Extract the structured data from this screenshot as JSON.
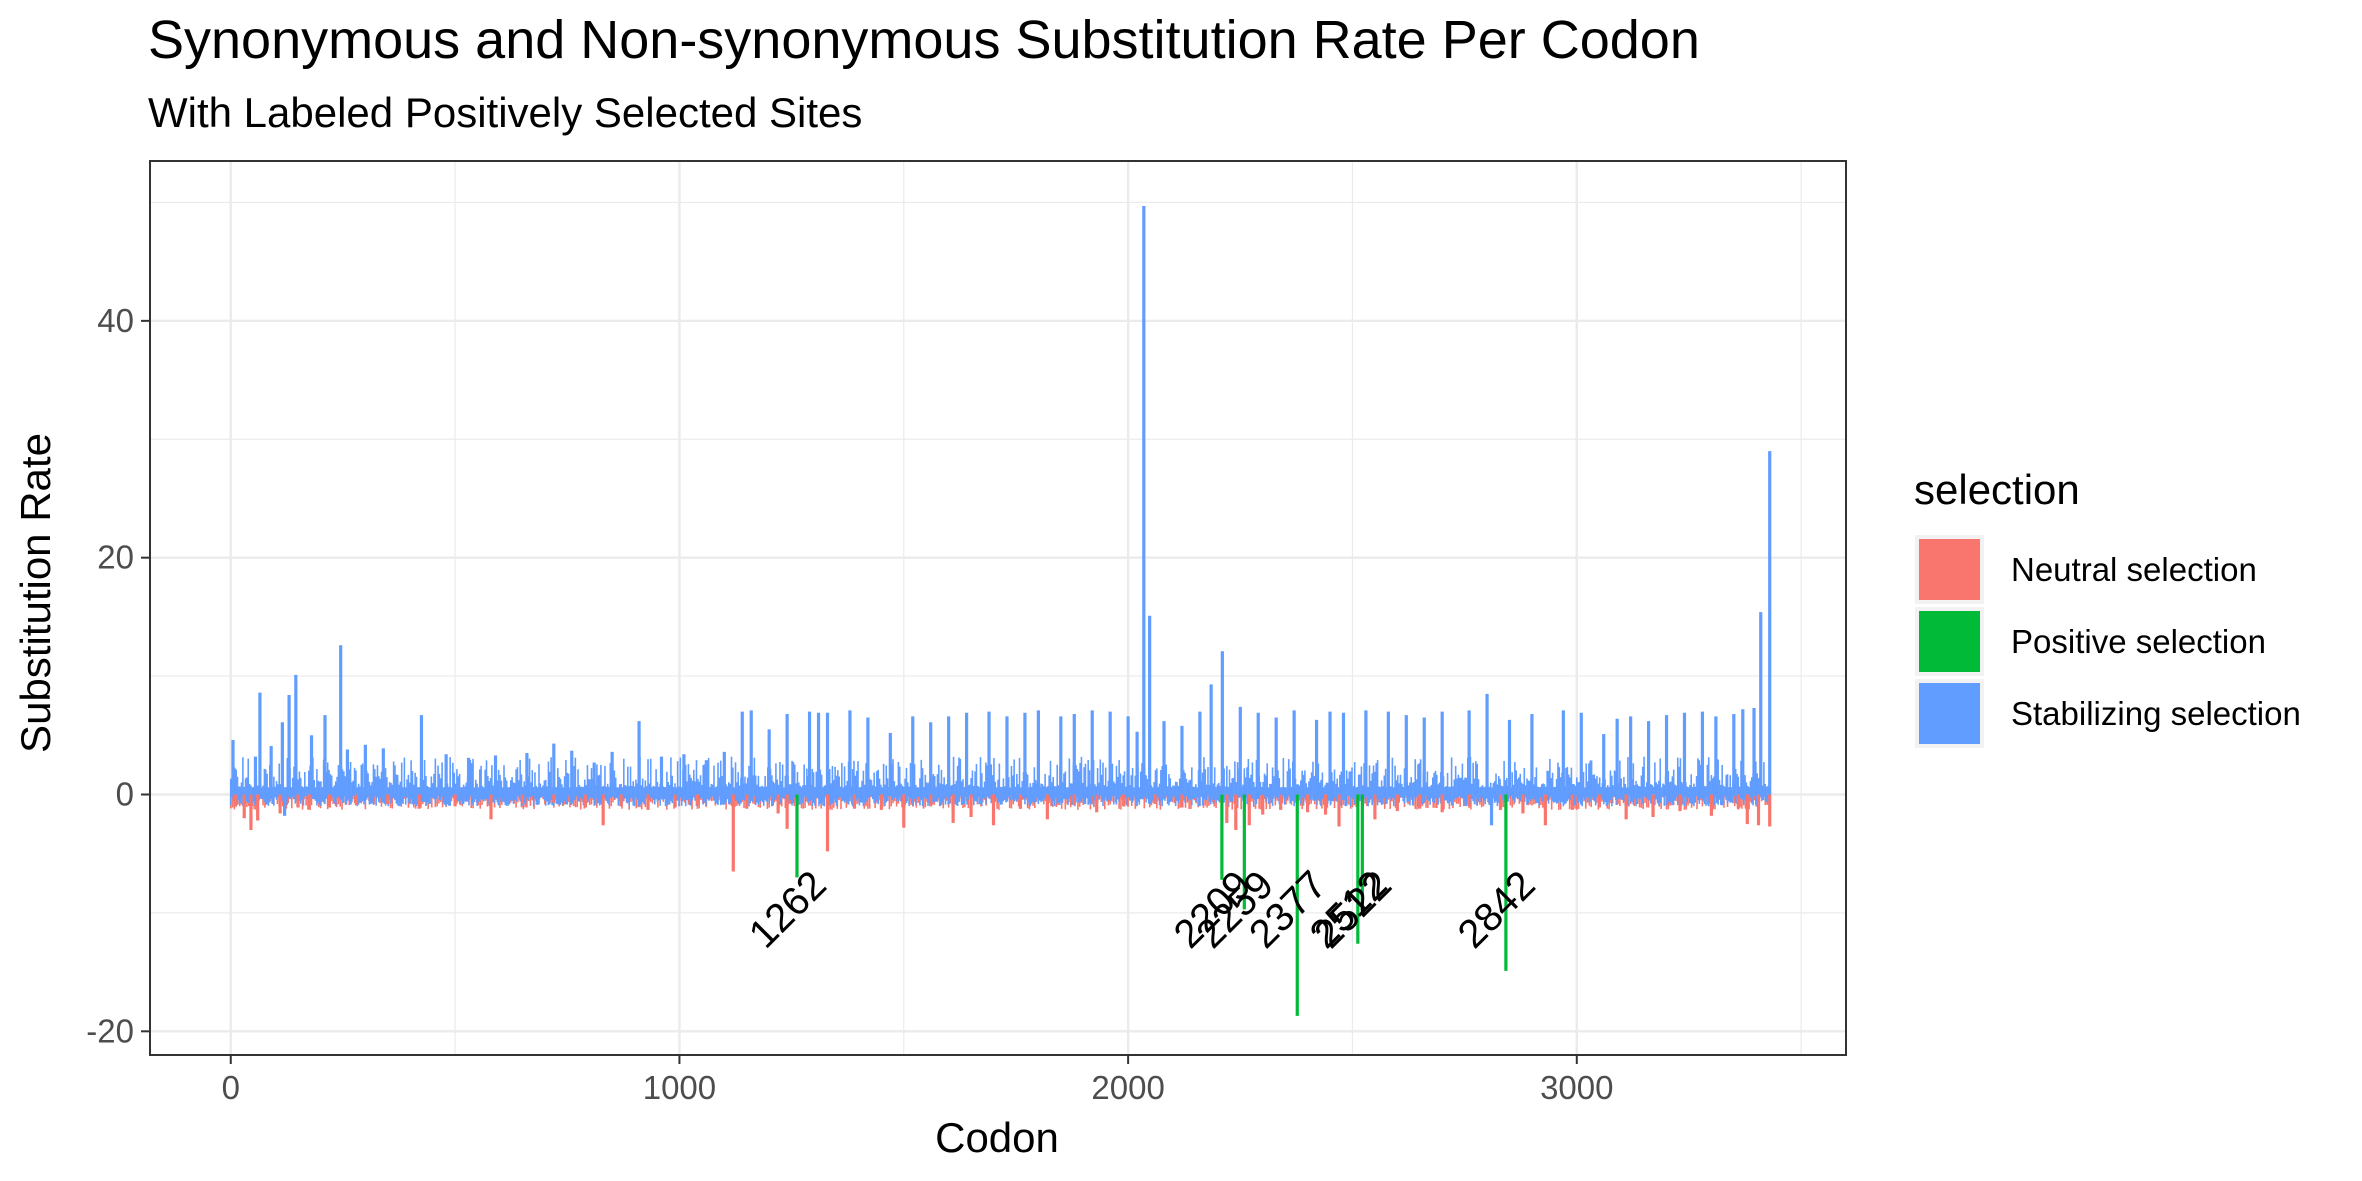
{
  "chart_data": {
    "type": "bar",
    "title": "Synonymous and Non-synonymous Substitution Rate Per Codon",
    "subtitle": "With Labeled Positively Selected Sites",
    "xlabel": "Codon",
    "ylabel": "Substitution Rate",
    "xlim": [
      -180,
      3600
    ],
    "ylim": [
      -22,
      53.5
    ],
    "x_ticks": [
      0,
      1000,
      2000,
      3000
    ],
    "y_ticks": [
      -20,
      0,
      20,
      40
    ],
    "grid": true,
    "legend": {
      "title": "selection",
      "position": "right",
      "items": [
        {
          "label": "Neutral selection",
          "color": "#F8766D"
        },
        {
          "label": "Positive selection",
          "color": "#00BA38"
        },
        {
          "label": "Stabilizing selection",
          "color": "#619CFF"
        }
      ]
    },
    "series": [
      {
        "name": "Stabilizing selection",
        "color": "#619CFF",
        "points": [
          [
            5,
            4.6
          ],
          [
            55,
            3.2
          ],
          [
            65,
            8.6
          ],
          [
            90,
            4.1
          ],
          [
            115,
            6.1
          ],
          [
            120,
            -1.8
          ],
          [
            130,
            8.4
          ],
          [
            145,
            10.1
          ],
          [
            180,
            5.0
          ],
          [
            210,
            6.7
          ],
          [
            245,
            12.6
          ],
          [
            260,
            3.8
          ],
          [
            300,
            4.2
          ],
          [
            340,
            3.9
          ],
          [
            425,
            6.7
          ],
          [
            480,
            3.4
          ],
          [
            530,
            3.1
          ],
          [
            590,
            3.3
          ],
          [
            660,
            3.5
          ],
          [
            720,
            4.3
          ],
          [
            760,
            3.7
          ],
          [
            810,
            2.7
          ],
          [
            850,
            3.6
          ],
          [
            910,
            6.2
          ],
          [
            960,
            3.2
          ],
          [
            1010,
            3.4
          ],
          [
            1060,
            2.9
          ],
          [
            1100,
            3.6
          ],
          [
            1140,
            7.0
          ],
          [
            1160,
            7.1
          ],
          [
            1200,
            5.5
          ],
          [
            1240,
            6.8
          ],
          [
            1290,
            7.0
          ],
          [
            1310,
            6.9
          ],
          [
            1330,
            6.9
          ],
          [
            1380,
            7.1
          ],
          [
            1420,
            6.5
          ],
          [
            1470,
            5.2
          ],
          [
            1520,
            6.6
          ],
          [
            1560,
            6.1
          ],
          [
            1600,
            6.6
          ],
          [
            1640,
            6.9
          ],
          [
            1690,
            7.0
          ],
          [
            1730,
            6.6
          ],
          [
            1770,
            6.9
          ],
          [
            1800,
            7.1
          ],
          [
            1850,
            6.6
          ],
          [
            1880,
            6.8
          ],
          [
            1920,
            7.1
          ],
          [
            1960,
            7.0
          ],
          [
            2000,
            6.6
          ],
          [
            2020,
            5.3
          ],
          [
            2035,
            49.7
          ],
          [
            2048,
            15.1
          ],
          [
            2080,
            6.2
          ],
          [
            2120,
            5.8
          ],
          [
            2160,
            7.0
          ],
          [
            2185,
            9.3
          ],
          [
            2210,
            12.1
          ],
          [
            2250,
            7.4
          ],
          [
            2290,
            6.9
          ],
          [
            2330,
            6.5
          ],
          [
            2370,
            7.1
          ],
          [
            2420,
            6.3
          ],
          [
            2450,
            7.0
          ],
          [
            2480,
            6.9
          ],
          [
            2530,
            7.1
          ],
          [
            2580,
            7.0
          ],
          [
            2620,
            6.7
          ],
          [
            2660,
            6.5
          ],
          [
            2700,
            7.0
          ],
          [
            2760,
            7.1
          ],
          [
            2800,
            8.5
          ],
          [
            2810,
            -2.6
          ],
          [
            2850,
            6.3
          ],
          [
            2900,
            6.8
          ],
          [
            2970,
            7.1
          ],
          [
            3010,
            6.9
          ],
          [
            3060,
            5.1
          ],
          [
            3090,
            6.4
          ],
          [
            3120,
            6.6
          ],
          [
            3160,
            6.2
          ],
          [
            3200,
            6.7
          ],
          [
            3240,
            6.9
          ],
          [
            3280,
            7.0
          ],
          [
            3310,
            6.6
          ],
          [
            3350,
            6.8
          ],
          [
            3370,
            7.2
          ],
          [
            3395,
            7.3
          ],
          [
            3410,
            15.4
          ],
          [
            3430,
            29.0
          ]
        ]
      },
      {
        "name": "Neutral selection",
        "color": "#F8766D",
        "points": [
          [
            10,
            -1.0
          ],
          [
            30,
            -2.0
          ],
          [
            45,
            -3.0
          ],
          [
            60,
            -2.2
          ],
          [
            110,
            -1.6
          ],
          [
            150,
            -1.1
          ],
          [
            175,
            -1.3
          ],
          [
            220,
            -1.1
          ],
          [
            280,
            -0.9
          ],
          [
            350,
            -0.8
          ],
          [
            420,
            -1.2
          ],
          [
            500,
            -1.0
          ],
          [
            580,
            -2.1
          ],
          [
            650,
            -0.8
          ],
          [
            720,
            -0.7
          ],
          [
            790,
            -1.1
          ],
          [
            830,
            -2.6
          ],
          [
            870,
            -1.0
          ],
          [
            930,
            -1.3
          ],
          [
            990,
            -1.1
          ],
          [
            1040,
            -0.9
          ],
          [
            1120,
            -6.5
          ],
          [
            1150,
            -1.2
          ],
          [
            1220,
            -1.6
          ],
          [
            1240,
            -2.9
          ],
          [
            1330,
            -4.8
          ],
          [
            1390,
            -1.2
          ],
          [
            1450,
            -1.3
          ],
          [
            1500,
            -2.8
          ],
          [
            1560,
            -1.0
          ],
          [
            1610,
            -2.4
          ],
          [
            1650,
            -1.9
          ],
          [
            1700,
            -2.6
          ],
          [
            1760,
            -1.2
          ],
          [
            1820,
            -2.1
          ],
          [
            1880,
            -0.9
          ],
          [
            1930,
            -1.5
          ],
          [
            1990,
            -1.0
          ],
          [
            2060,
            -0.8
          ],
          [
            2120,
            -1.1
          ],
          [
            2220,
            -2.4
          ],
          [
            2240,
            -3.0
          ],
          [
            2270,
            -2.6
          ],
          [
            2300,
            -1.7
          ],
          [
            2340,
            -1.3
          ],
          [
            2400,
            -1.5
          ],
          [
            2440,
            -1.7
          ],
          [
            2470,
            -2.7
          ],
          [
            2550,
            -2.1
          ],
          [
            2600,
            -1.4
          ],
          [
            2650,
            -1.2
          ],
          [
            2700,
            -1.5
          ],
          [
            2760,
            -1.0
          ],
          [
            2830,
            -1.3
          ],
          [
            2880,
            -1.6
          ],
          [
            2930,
            -2.6
          ],
          [
            2990,
            -1.3
          ],
          [
            3050,
            -1.1
          ],
          [
            3110,
            -2.1
          ],
          [
            3170,
            -1.9
          ],
          [
            3230,
            -1.4
          ],
          [
            3300,
            -1.8
          ],
          [
            3360,
            -1.2
          ],
          [
            3380,
            -2.5
          ],
          [
            3405,
            -2.6
          ],
          [
            3430,
            -2.7
          ]
        ]
      },
      {
        "name": "Positive selection",
        "color": "#00BA38",
        "points": [
          [
            1262,
            -7.0
          ],
          [
            2209,
            -7.2
          ],
          [
            2259,
            -9.7
          ],
          [
            2377,
            -18.7
          ],
          [
            2512,
            -12.6
          ],
          [
            2522,
            -9.5
          ],
          [
            2842,
            -14.9
          ]
        ],
        "labels": [
          "1262",
          "2209",
          "2259",
          "2377",
          "2512",
          "2522",
          "2842"
        ]
      }
    ]
  }
}
